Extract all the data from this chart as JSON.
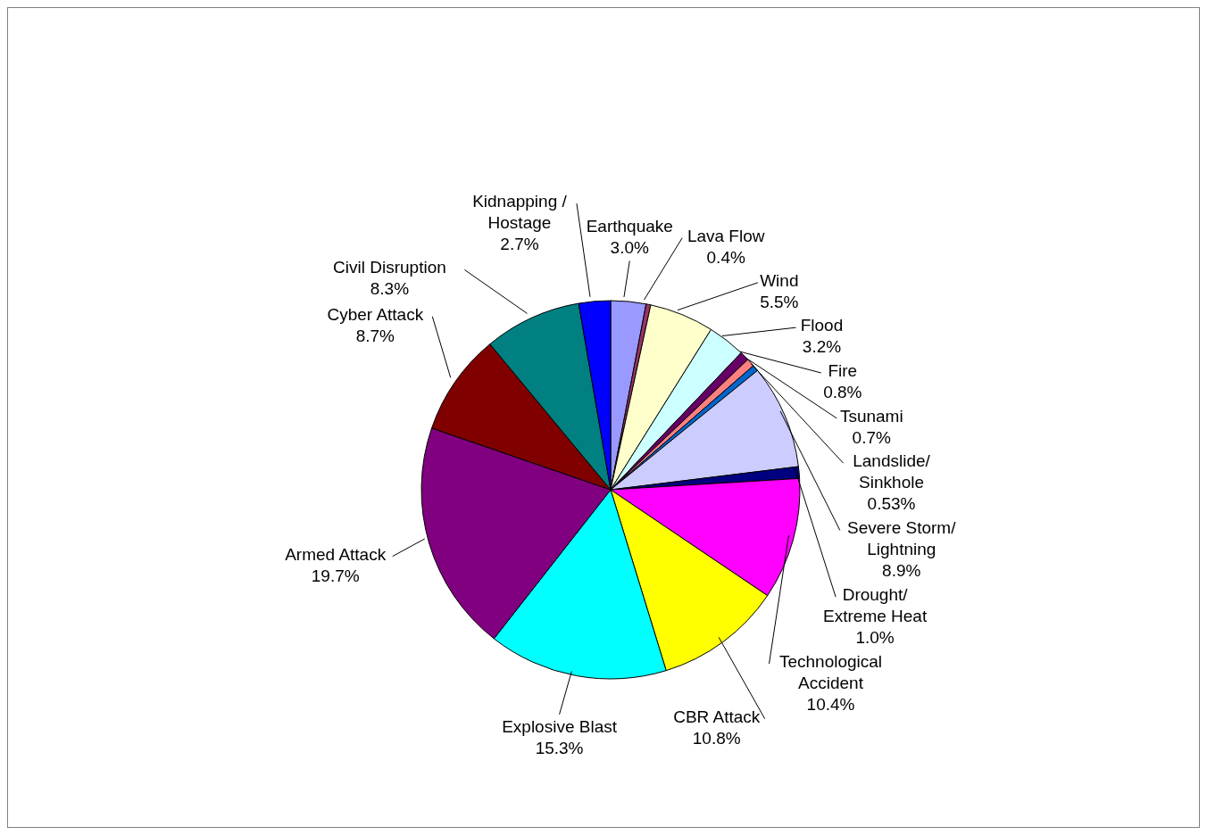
{
  "chart_data": {
    "type": "pie",
    "categories": [
      "Earthquake",
      "Lava Flow",
      "Wind",
      "Flood",
      "Fire",
      "Tsunami",
      "Landslide/ Sinkhole",
      "Severe Storm/ Lightning",
      "Drought/ Extreme Heat",
      "Technological Accident",
      "CBR Attack",
      "Explosive Blast",
      "Armed Attack",
      "Cyber Attack",
      "Civil Disruption",
      "Kidnapping / Hostage"
    ],
    "values": [
      3.0,
      0.4,
      5.5,
      3.2,
      0.8,
      0.7,
      0.53,
      8.9,
      1.0,
      10.4,
      10.8,
      15.3,
      19.7,
      8.7,
      8.3,
      2.7
    ],
    "value_labels": [
      "3.0%",
      "0.4%",
      "5.5%",
      "3.2%",
      "0.8%",
      "0.7%",
      "0.53%",
      "8.9%",
      "1.0%",
      "10.4%",
      "10.8%",
      "15.3%",
      "19.7%",
      "8.7%",
      "8.3%",
      "2.7%"
    ],
    "colors": [
      "#9999ff",
      "#993366",
      "#ffffcc",
      "#ccffff",
      "#660066",
      "#ff8080",
      "#0066cc",
      "#ccccff",
      "#000080",
      "#ff00ff",
      "#ffff00",
      "#00ffff",
      "#800080",
      "#800000",
      "#008080",
      "#0000ff"
    ],
    "legend": false
  }
}
